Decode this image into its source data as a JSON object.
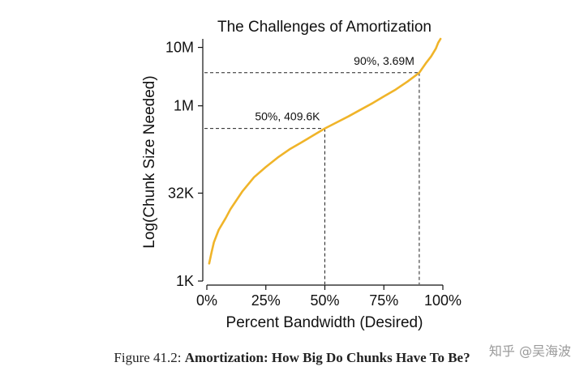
{
  "chart_data": {
    "type": "line",
    "title": "The Challenges of Amortization",
    "xlabel": "Percent Bandwidth (Desired)",
    "ylabel": "Log(Chunk Size Needed)",
    "y_scale": "log",
    "xlim": [
      0,
      100
    ],
    "ylim": [
      1000,
      14000000
    ],
    "x_ticks": [
      {
        "value": 0,
        "label": "0%"
      },
      {
        "value": 25,
        "label": "25%"
      },
      {
        "value": 50,
        "label": "50%"
      },
      {
        "value": 75,
        "label": "75%"
      },
      {
        "value": 100,
        "label": "100%"
      }
    ],
    "y_ticks": [
      {
        "value": 1000,
        "label": "1K"
      },
      {
        "value": 32000,
        "label": "32K"
      },
      {
        "value": 1000000,
        "label": "1M"
      },
      {
        "value": 10000000,
        "label": "10M"
      }
    ],
    "series": [
      {
        "color": "#f0b429",
        "points": [
          [
            1,
            2000
          ],
          [
            2,
            3100
          ],
          [
            3,
            4600
          ],
          [
            5,
            7500
          ],
          [
            8,
            12000
          ],
          [
            10,
            17000
          ],
          [
            15,
            34000
          ],
          [
            20,
            60000
          ],
          [
            25,
            90000
          ],
          [
            30,
            130000
          ],
          [
            35,
            180000
          ],
          [
            40,
            235000
          ],
          [
            45,
            310000
          ],
          [
            50,
            409600
          ],
          [
            55,
            520000
          ],
          [
            60,
            660000
          ],
          [
            65,
            850000
          ],
          [
            70,
            1100000
          ],
          [
            75,
            1450000
          ],
          [
            80,
            1900000
          ],
          [
            85,
            2600000
          ],
          [
            88,
            3200000
          ],
          [
            90,
            3690000
          ],
          [
            93,
            5500000
          ],
          [
            95,
            7000000
          ],
          [
            97,
            9500000
          ],
          [
            98,
            12000000
          ],
          [
            99,
            14000000
          ]
        ]
      }
    ],
    "annotations": [
      {
        "x": 50,
        "y": 409600,
        "label": "50%, 409.6K"
      },
      {
        "x": 90,
        "y": 3690000,
        "label": "90%, 3.69M"
      }
    ],
    "grid": false,
    "legend": "none"
  },
  "caption": {
    "prefix": "Figure 41.2: ",
    "bold": "Amortization: How Big Do Chunks Have To Be?"
  },
  "watermark": "知乎 @吴海波"
}
